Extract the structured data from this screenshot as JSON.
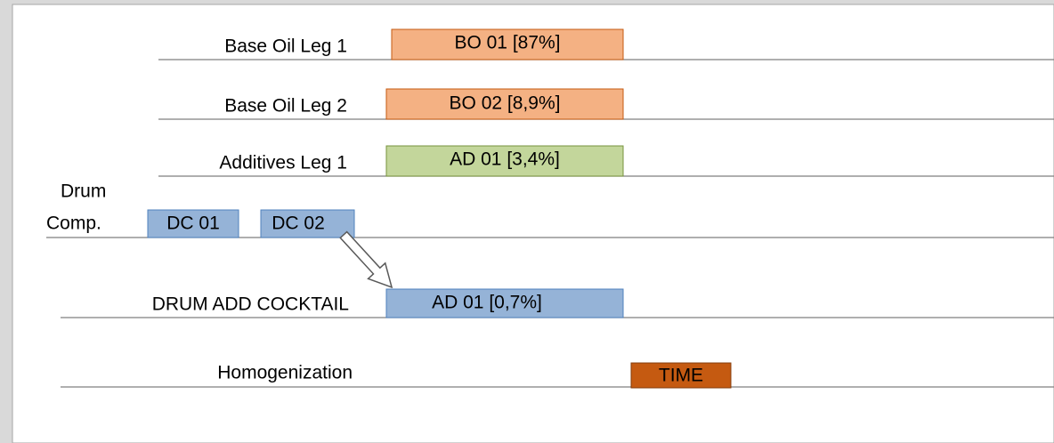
{
  "rows": [
    {
      "label": "Base Oil Leg 1",
      "blocks": [
        "BO 01 [87%]"
      ]
    },
    {
      "label": "Base Oil Leg 2",
      "blocks": [
        "BO 02 [8,9%]"
      ]
    },
    {
      "label": "Additives Leg 1",
      "blocks": [
        "AD 01 [3,4%]"
      ]
    },
    {
      "label_lines": [
        "Drum",
        "Comp."
      ],
      "blocks": [
        "DC 01",
        "DC 02"
      ]
    },
    {
      "label": "DRUM ADD COCKTAIL",
      "blocks": [
        "AD 01 [0,7%]"
      ]
    },
    {
      "label": "Homogenization",
      "blocks": [
        "TIME"
      ]
    }
  ]
}
